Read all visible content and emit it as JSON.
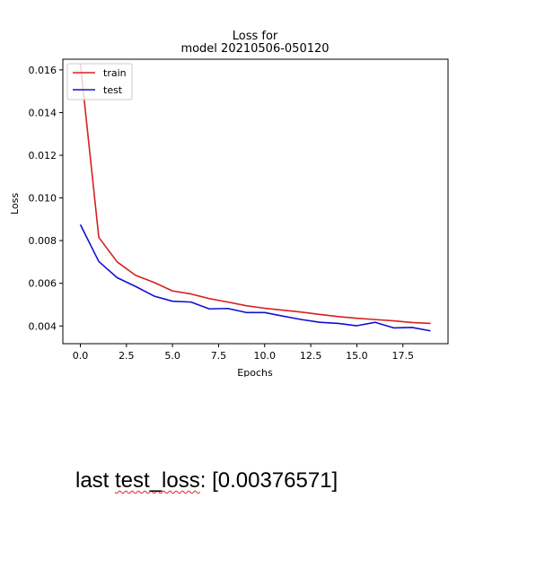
{
  "chart_data": {
    "type": "line",
    "title": "Loss for\nmodel 20210506-050120",
    "xlabel": "Epochs",
    "ylabel": "Loss",
    "xlim": [
      -0.95,
      19.95
    ],
    "ylim": [
      0.00317,
      0.0165
    ],
    "xticks": [
      0.0,
      2.5,
      5.0,
      7.5,
      10.0,
      12.5,
      15.0,
      17.5
    ],
    "xtick_labels": [
      "0.0",
      "2.5",
      "5.0",
      "7.5",
      "10.0",
      "12.5",
      "15.0",
      "17.5"
    ],
    "yticks": [
      0.004,
      0.006,
      0.008,
      0.01,
      0.012,
      0.014,
      0.016
    ],
    "ytick_labels": [
      "0.004",
      "0.006",
      "0.008",
      "0.010",
      "0.012",
      "0.014",
      "0.016"
    ],
    "grid": false,
    "legend_position": "top-left",
    "x": [
      0,
      1,
      2,
      3,
      4,
      5,
      6,
      7,
      8,
      9,
      10,
      11,
      12,
      13,
      14,
      15,
      16,
      17,
      18,
      19
    ],
    "series": [
      {
        "name": "train",
        "color": "#d62020",
        "values": [
          0.0163,
          0.00815,
          0.007,
          0.00637,
          0.00604,
          0.00564,
          0.0055,
          0.00528,
          0.00512,
          0.00495,
          0.00483,
          0.00474,
          0.00465,
          0.00454,
          0.00444,
          0.00436,
          0.0043,
          0.00424,
          0.00416,
          0.00412
        ]
      },
      {
        "name": "test",
        "color": "#1010d0",
        "values": [
          0.00875,
          0.00702,
          0.00626,
          0.00585,
          0.0054,
          0.00516,
          0.00512,
          0.0048,
          0.00482,
          0.00463,
          0.00463,
          0.00446,
          0.0043,
          0.00417,
          0.00412,
          0.00401,
          0.00417,
          0.00391,
          0.00393,
          0.00377
        ]
      }
    ]
  },
  "caption": {
    "prefix": "last ",
    "misspelled": "test_loss",
    "suffix": ": [0.00376571]"
  }
}
